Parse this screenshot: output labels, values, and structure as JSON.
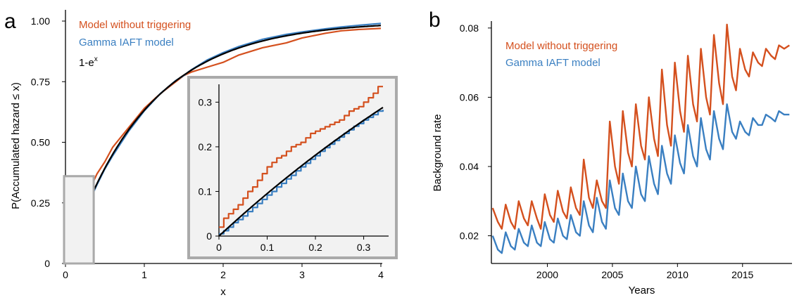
{
  "colors": {
    "orange": "#d4501e",
    "blue": "#3a7fc1",
    "black": "#000000",
    "inset_bg": "#f2f2f2",
    "inset_border": "#aaaaaa"
  },
  "chart_data": [
    {
      "type": "line",
      "panel": "a",
      "xlabel": "x",
      "ylabel": "P(Accumulated hazard ≤ x)",
      "xlim": [
        0,
        4
      ],
      "ylim": [
        0,
        1
      ],
      "xticks": [
        "0",
        "1",
        "2",
        "3",
        "4"
      ],
      "yticks": [
        "0",
        "0.25",
        "0.50",
        "0.75",
        "1.00"
      ],
      "legend": [
        "Model without triggering",
        "Gamma IAFT model",
        "1-e"
      ],
      "legend_superscript": "x",
      "legend_position": "top-left",
      "series": [
        {
          "name": "Model without triggering",
          "color": "orange",
          "x": [
            0,
            0.02,
            0.05,
            0.1,
            0.15,
            0.2,
            0.3,
            0.4,
            0.5,
            0.6,
            0.7,
            0.8,
            1.0,
            1.2,
            1.4,
            1.5,
            1.6,
            1.8,
            2.0,
            2.2,
            2.5,
            2.8,
            3.0,
            3.3,
            3.5,
            3.7,
            4.0
          ],
          "y": [
            0,
            0.07,
            0.12,
            0.18,
            0.21,
            0.24,
            0.3,
            0.37,
            0.42,
            0.48,
            0.52,
            0.56,
            0.64,
            0.7,
            0.75,
            0.775,
            0.79,
            0.81,
            0.83,
            0.86,
            0.89,
            0.91,
            0.93,
            0.95,
            0.96,
            0.965,
            0.97
          ]
        },
        {
          "name": "Gamma IAFT model",
          "color": "blue",
          "x": [
            0,
            0.05,
            0.1,
            0.2,
            0.3,
            0.4,
            0.5,
            0.6,
            0.7,
            0.8,
            1.0,
            1.2,
            1.4,
            1.5,
            1.6,
            1.8,
            2.0,
            2.2,
            2.5,
            2.8,
            3.0,
            3.3,
            3.5,
            3.7,
            4.0
          ],
          "y": [
            0,
            0.045,
            0.09,
            0.175,
            0.255,
            0.325,
            0.39,
            0.445,
            0.495,
            0.545,
            0.63,
            0.7,
            0.755,
            0.775,
            0.8,
            0.84,
            0.87,
            0.895,
            0.925,
            0.945,
            0.955,
            0.968,
            0.976,
            0.982,
            0.99
          ]
        },
        {
          "name": "1-e",
          "color": "black",
          "function": "1-exp(-x)"
        }
      ],
      "inset": {
        "xlim": [
          0,
          0.34
        ],
        "ylim": [
          0,
          0.34
        ],
        "xticks": [
          "0",
          "0.1",
          "0.2",
          "0.3"
        ],
        "yticks": [
          "0",
          "0.1",
          "0.2",
          "0.3"
        ],
        "series": [
          {
            "name": "Model without triggering",
            "color": "orange",
            "step": true,
            "x": [
              0,
              0.01,
              0.02,
              0.03,
              0.04,
              0.05,
              0.06,
              0.07,
              0.08,
              0.09,
              0.1,
              0.11,
              0.12,
              0.13,
              0.14,
              0.15,
              0.16,
              0.17,
              0.18,
              0.19,
              0.2,
              0.21,
              0.22,
              0.23,
              0.24,
              0.25,
              0.26,
              0.27,
              0.28,
              0.29,
              0.3,
              0.31,
              0.32,
              0.33,
              0.34
            ],
            "y": [
              0.02,
              0.04,
              0.05,
              0.06,
              0.07,
              0.085,
              0.1,
              0.11,
              0.125,
              0.14,
              0.155,
              0.165,
              0.175,
              0.18,
              0.19,
              0.2,
              0.205,
              0.21,
              0.22,
              0.23,
              0.235,
              0.24,
              0.245,
              0.25,
              0.255,
              0.26,
              0.27,
              0.28,
              0.285,
              0.29,
              0.3,
              0.31,
              0.32,
              0.335,
              0.335
            ]
          },
          {
            "name": "Gamma IAFT model",
            "color": "blue",
            "step": true,
            "x": [
              0,
              0.01,
              0.02,
              0.03,
              0.04,
              0.05,
              0.06,
              0.07,
              0.08,
              0.09,
              0.1,
              0.11,
              0.12,
              0.13,
              0.14,
              0.15,
              0.16,
              0.17,
              0.18,
              0.19,
              0.2,
              0.21,
              0.22,
              0.23,
              0.24,
              0.25,
              0.26,
              0.27,
              0.28,
              0.29,
              0.3,
              0.31,
              0.32,
              0.33,
              0.34
            ],
            "y": [
              0.005,
              0.012,
              0.02,
              0.03,
              0.037,
              0.045,
              0.055,
              0.064,
              0.073,
              0.082,
              0.092,
              0.1,
              0.11,
              0.118,
              0.128,
              0.136,
              0.146,
              0.155,
              0.163,
              0.172,
              0.18,
              0.19,
              0.198,
              0.206,
              0.214,
              0.222,
              0.23,
              0.238,
              0.246,
              0.252,
              0.26,
              0.266,
              0.272,
              0.28,
              0.283
            ]
          },
          {
            "name": "1-e",
            "color": "black",
            "function": "1-exp(-x)"
          }
        ]
      }
    },
    {
      "type": "line",
      "panel": "b",
      "xlabel": "Years",
      "ylabel": "Background rate",
      "xlim": [
        1995.7,
        2018.8
      ],
      "ylim": [
        0.012,
        0.082
      ],
      "xticks": [
        2000,
        2005,
        2010,
        2015
      ],
      "yticks": [
        "0.02",
        "0.04",
        "0.06",
        "0.08"
      ],
      "legend": [
        "Model without triggering",
        "Gamma IAFT model"
      ],
      "legend_position": "top-left",
      "series": [
        {
          "name": "Model without triggering",
          "color": "orange",
          "x": [
            1995.8,
            1996.2,
            1996.5,
            1996.8,
            1997.2,
            1997.5,
            1997.8,
            1998.2,
            1998.5,
            1998.8,
            1999.2,
            1999.5,
            1999.8,
            2000.2,
            2000.5,
            2000.8,
            2001.2,
            2001.5,
            2001.8,
            2002.2,
            2002.5,
            2002.8,
            2003.2,
            2003.5,
            2003.8,
            2004.2,
            2004.5,
            2004.8,
            2005.2,
            2005.5,
            2005.8,
            2006.2,
            2006.5,
            2006.8,
            2007.2,
            2007.5,
            2007.8,
            2008.2,
            2008.5,
            2008.8,
            2009.2,
            2009.5,
            2009.8,
            2010.2,
            2010.5,
            2010.8,
            2011.2,
            2011.5,
            2011.8,
            2012.2,
            2012.5,
            2012.8,
            2013.2,
            2013.5,
            2013.8,
            2014.2,
            2014.5,
            2014.8,
            2015.2,
            2015.5,
            2015.8,
            2016.2,
            2016.5,
            2016.8,
            2017.2,
            2017.5,
            2017.8,
            2018.2,
            2018.6
          ],
          "y": [
            0.028,
            0.024,
            0.022,
            0.029,
            0.024,
            0.022,
            0.03,
            0.025,
            0.023,
            0.03,
            0.025,
            0.022,
            0.032,
            0.026,
            0.024,
            0.033,
            0.027,
            0.025,
            0.034,
            0.028,
            0.026,
            0.042,
            0.031,
            0.028,
            0.036,
            0.03,
            0.028,
            0.053,
            0.04,
            0.035,
            0.056,
            0.044,
            0.04,
            0.058,
            0.046,
            0.042,
            0.06,
            0.048,
            0.043,
            0.068,
            0.052,
            0.046,
            0.07,
            0.056,
            0.05,
            0.072,
            0.058,
            0.053,
            0.074,
            0.06,
            0.055,
            0.078,
            0.064,
            0.058,
            0.081,
            0.066,
            0.062,
            0.074,
            0.068,
            0.066,
            0.073,
            0.07,
            0.069,
            0.074,
            0.072,
            0.071,
            0.075,
            0.074,
            0.075
          ]
        },
        {
          "name": "Gamma IAFT model",
          "color": "blue",
          "x": [
            1995.8,
            1996.2,
            1996.5,
            1996.8,
            1997.2,
            1997.5,
            1997.8,
            1998.2,
            1998.5,
            1998.8,
            1999.2,
            1999.5,
            1999.8,
            2000.2,
            2000.5,
            2000.8,
            2001.2,
            2001.5,
            2001.8,
            2002.2,
            2002.5,
            2002.8,
            2003.2,
            2003.5,
            2003.8,
            2004.2,
            2004.5,
            2004.8,
            2005.2,
            2005.5,
            2005.8,
            2006.2,
            2006.5,
            2006.8,
            2007.2,
            2007.5,
            2007.8,
            2008.2,
            2008.5,
            2008.8,
            2009.2,
            2009.5,
            2009.8,
            2010.2,
            2010.5,
            2010.8,
            2011.2,
            2011.5,
            2011.8,
            2012.2,
            2012.5,
            2012.8,
            2013.2,
            2013.5,
            2013.8,
            2014.2,
            2014.5,
            2014.8,
            2015.2,
            2015.5,
            2015.8,
            2016.2,
            2016.5,
            2016.8,
            2017.2,
            2017.5,
            2017.8,
            2018.2,
            2018.6
          ],
          "y": [
            0.02,
            0.016,
            0.015,
            0.021,
            0.017,
            0.016,
            0.022,
            0.018,
            0.017,
            0.023,
            0.018,
            0.017,
            0.024,
            0.019,
            0.018,
            0.025,
            0.02,
            0.019,
            0.026,
            0.021,
            0.02,
            0.03,
            0.023,
            0.021,
            0.031,
            0.024,
            0.022,
            0.036,
            0.028,
            0.026,
            0.038,
            0.03,
            0.028,
            0.04,
            0.032,
            0.03,
            0.043,
            0.035,
            0.032,
            0.046,
            0.038,
            0.035,
            0.049,
            0.041,
            0.038,
            0.052,
            0.043,
            0.04,
            0.054,
            0.045,
            0.042,
            0.056,
            0.048,
            0.045,
            0.058,
            0.05,
            0.048,
            0.053,
            0.05,
            0.049,
            0.054,
            0.052,
            0.052,
            0.055,
            0.054,
            0.053,
            0.056,
            0.055,
            0.055
          ]
        }
      ]
    }
  ]
}
